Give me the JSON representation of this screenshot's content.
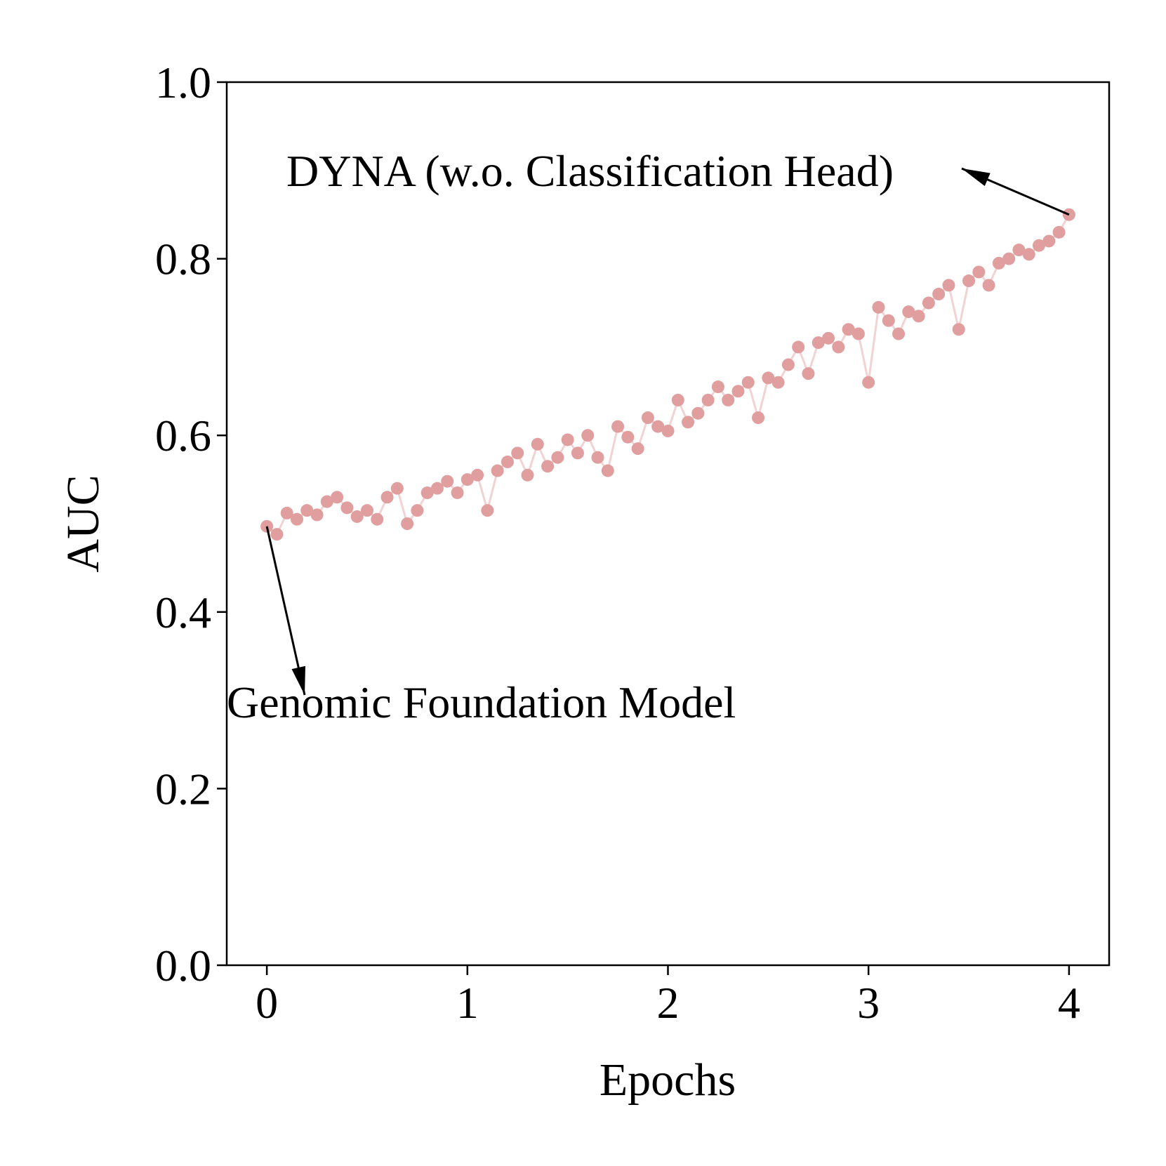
{
  "chart_data": {
    "type": "line",
    "xlabel": "Epochs",
    "ylabel": "AUC",
    "x": [
      0,
      0.05,
      0.1,
      0.15,
      0.2,
      0.25,
      0.3,
      0.35,
      0.4,
      0.45,
      0.5,
      0.55,
      0.6,
      0.65,
      0.7,
      0.75,
      0.8,
      0.85,
      0.9,
      0.95,
      1,
      1.05,
      1.1,
      1.15,
      1.2,
      1.25,
      1.3,
      1.35,
      1.4,
      1.45,
      1.5,
      1.55,
      1.6,
      1.65,
      1.7,
      1.75,
      1.8,
      1.85,
      1.9,
      1.95,
      2,
      2.05,
      2.1,
      2.15,
      2.2,
      2.25,
      2.3,
      2.35,
      2.4,
      2.45,
      2.5,
      2.55,
      2.6,
      2.65,
      2.7,
      2.75,
      2.8,
      2.85,
      2.9,
      2.95,
      3,
      3.05,
      3.1,
      3.15,
      3.2,
      3.25,
      3.3,
      3.35,
      3.4,
      3.45,
      3.5,
      3.55,
      3.6,
      3.65,
      3.7,
      3.75,
      3.8,
      3.85,
      3.9,
      3.95,
      4
    ],
    "series": [
      {
        "color": "#e09e9e",
        "values": [
          0.497,
          0.488,
          0.512,
          0.505,
          0.515,
          0.51,
          0.525,
          0.53,
          0.518,
          0.508,
          0.515,
          0.505,
          0.53,
          0.54,
          0.5,
          0.515,
          0.535,
          0.54,
          0.548,
          0.535,
          0.55,
          0.555,
          0.515,
          0.56,
          0.57,
          0.58,
          0.555,
          0.59,
          0.565,
          0.575,
          0.595,
          0.58,
          0.6,
          0.575,
          0.56,
          0.61,
          0.598,
          0.585,
          0.62,
          0.61,
          0.605,
          0.64,
          0.615,
          0.625,
          0.64,
          0.655,
          0.64,
          0.65,
          0.66,
          0.62,
          0.665,
          0.66,
          0.68,
          0.7,
          0.67,
          0.705,
          0.71,
          0.7,
          0.72,
          0.715,
          0.66,
          0.745,
          0.73,
          0.715,
          0.74,
          0.735,
          0.75,
          0.76,
          0.77,
          0.72,
          0.775,
          0.785,
          0.77,
          0.795,
          0.8,
          0.81,
          0.805,
          0.815,
          0.82,
          0.83,
          0.85
        ]
      }
    ],
    "xlim": [
      -0.2,
      4.2
    ],
    "xticks": [
      0,
      1,
      2,
      3,
      4
    ],
    "ylim": [
      0,
      1
    ],
    "yticks": [
      {
        "value": 0,
        "label": "0.0"
      },
      0.2,
      0.4,
      0.6,
      0.8,
      {
        "value": 1,
        "label": "1.0"
      }
    ],
    "annotations": [
      {
        "text": "DYNA (w.o. Classification Head)"
      },
      {
        "text": "Genomic Foundation Model"
      }
    ]
  }
}
